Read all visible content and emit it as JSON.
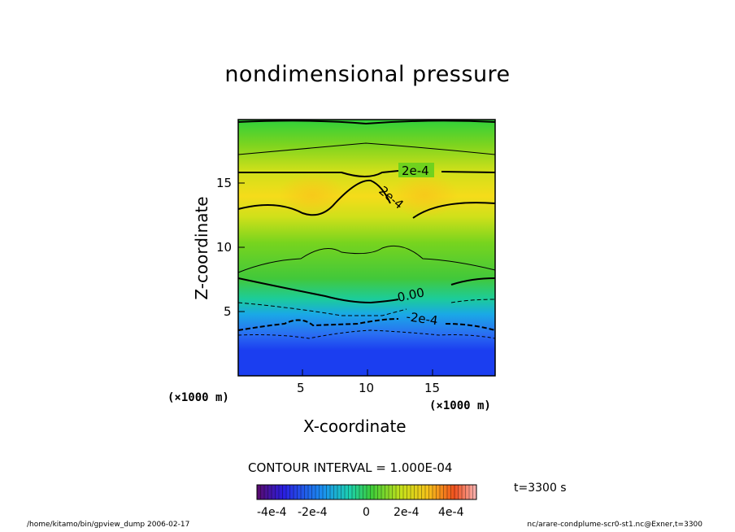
{
  "chart_data": {
    "type": "heatmap",
    "title": "nondimensional pressure",
    "xlabel": "X-coordinate",
    "ylabel": "Z-coordinate",
    "x_unit": "(×1000 m)",
    "y_unit": "(×1000 m)",
    "xlim": [
      0,
      20
    ],
    "ylim": [
      0,
      20
    ],
    "x_ticks": [
      5,
      10,
      15
    ],
    "y_ticks": [
      5,
      10,
      15
    ],
    "contour_interval": "CONTOUR INTERVAL = 1.000E-04",
    "contour_labels": [
      "2e-4",
      "2e-4",
      "0.00",
      "-2e-4"
    ],
    "colorbar": {
      "range": [
        -0.0005,
        0.0005
      ],
      "tick_labels": [
        "-4e-4",
        "-2e-4",
        "0",
        "2e-4",
        "4e-4"
      ],
      "colormap": "rainbow"
    },
    "field_description_levels": [
      {
        "z_range": [
          0,
          3
        ],
        "value": -0.0004
      },
      {
        "z_range": [
          3,
          5
        ],
        "value": -0.0002
      },
      {
        "z_range": [
          6,
          11
        ],
        "value": 0.0001
      },
      {
        "z_range": [
          12,
          16
        ],
        "value": 0.0003
      },
      {
        "z_range": [
          17,
          20
        ],
        "value": 0.0001
      }
    ],
    "time_label": "t=3300 s",
    "grid": false
  },
  "footer": {
    "left": "/home/kitamo/bin/gpview_dump  2006-02-17",
    "right": "nc/arare-condplume-scr0-st1.nc@Exner,t=3300"
  },
  "colors": {
    "background": "#ffffff",
    "low": "#1a3cf0",
    "mid": "#4ad02a",
    "high": "#f8d21c"
  }
}
